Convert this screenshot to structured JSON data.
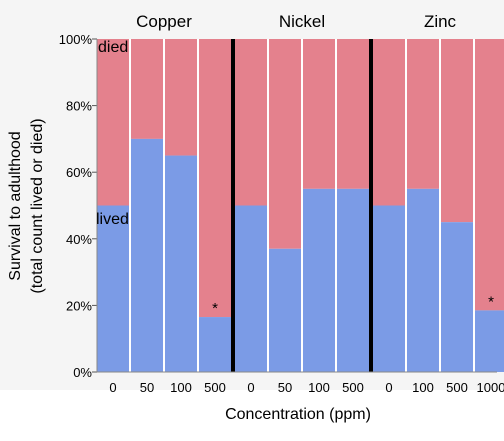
{
  "chart_data": {
    "type": "bar",
    "subtype": "stacked-100-mosaic",
    "ylabel_line1": "Survival to adulthood",
    "ylabel_line2": "(total count lived or died)",
    "xlabel": "Concentration (ppm)",
    "ylim": [
      0,
      100
    ],
    "yticks": [
      "0%",
      "20%",
      "40%",
      "60%",
      "80%",
      "100%"
    ],
    "yticks_values": [
      0,
      20,
      40,
      60,
      80,
      100
    ],
    "grid": false,
    "series": [
      {
        "name": "lived",
        "color": "#7b9be6"
      },
      {
        "name": "died",
        "color": "#e4818d"
      }
    ],
    "panels": [
      {
        "title": "Copper",
        "bars": [
          {
            "category": "0",
            "lived": 50,
            "asterisk": ""
          },
          {
            "category": "50",
            "lived": 70,
            "asterisk": ""
          },
          {
            "category": "100",
            "lived": 65,
            "asterisk": ""
          },
          {
            "category": "500",
            "lived": 16.5,
            "asterisk": "*"
          }
        ]
      },
      {
        "title": "Nickel",
        "bars": [
          {
            "category": "0",
            "lived": 50,
            "asterisk": ""
          },
          {
            "category": "50",
            "lived": 37,
            "asterisk": ""
          },
          {
            "category": "100",
            "lived": 55,
            "asterisk": ""
          },
          {
            "category": "500",
            "lived": 55,
            "asterisk": ""
          }
        ]
      },
      {
        "title": "Zinc",
        "bars": [
          {
            "category": "0",
            "lived": 50,
            "asterisk": ""
          },
          {
            "category": "100",
            "lived": 55,
            "asterisk": ""
          },
          {
            "category": "500",
            "lived": 45,
            "asterisk": ""
          },
          {
            "category": "1000",
            "lived": 18.5,
            "asterisk": "*"
          }
        ]
      }
    ],
    "annotations": {
      "died_label": "died",
      "lived_label": "lived"
    }
  }
}
